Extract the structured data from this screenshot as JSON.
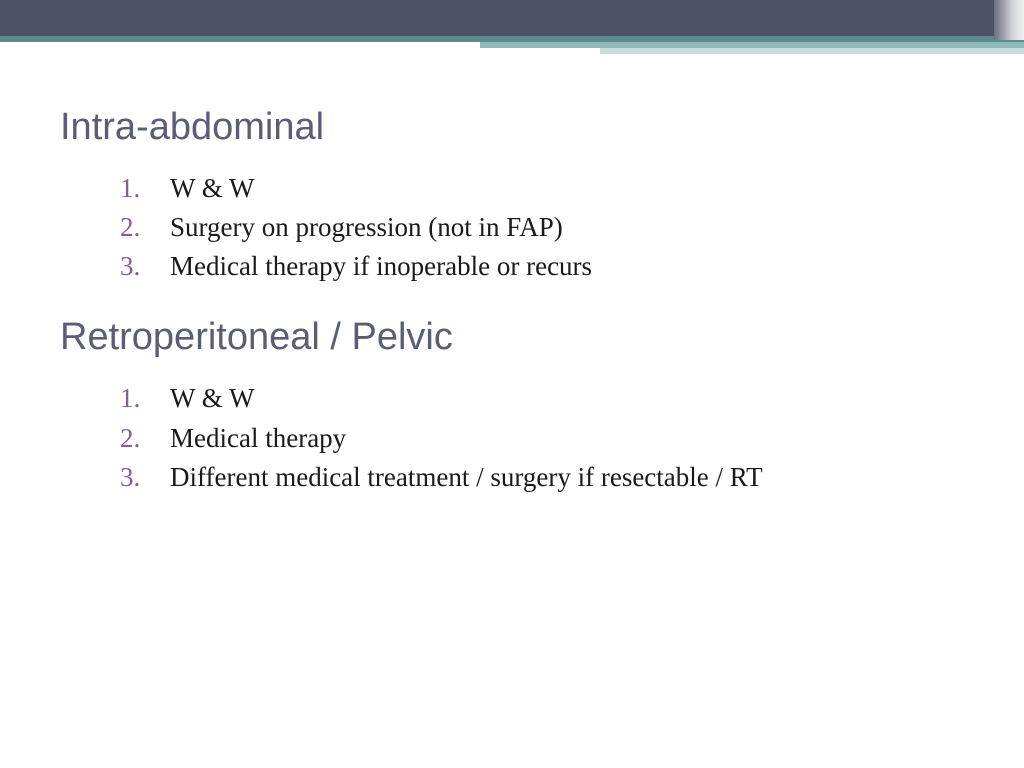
{
  "banner": {
    "bg_color": "#4d5166",
    "accent_colors": [
      "#5a8a8a",
      "#8fb8b8",
      "#c8dcdc"
    ]
  },
  "sections": [
    {
      "heading": "Intra-abdominal",
      "items": [
        "W & W",
        "Surgery on progression (not in FAP)",
        "Medical therapy if inoperable or recurs"
      ]
    },
    {
      "heading": "Retroperitoneal / Pelvic",
      "items": [
        "W & W",
        "Medical therapy",
        "Different medical treatment / surgery if resectable / RT"
      ]
    }
  ],
  "typography": {
    "heading_font": "Verdana",
    "heading_color": "#5a5e75",
    "heading_fontsize": 38,
    "body_font": "Georgia",
    "body_color": "#1a1a1a",
    "body_fontsize": 27,
    "number_color": "#8a5a9a"
  },
  "background_color": "#ffffff"
}
